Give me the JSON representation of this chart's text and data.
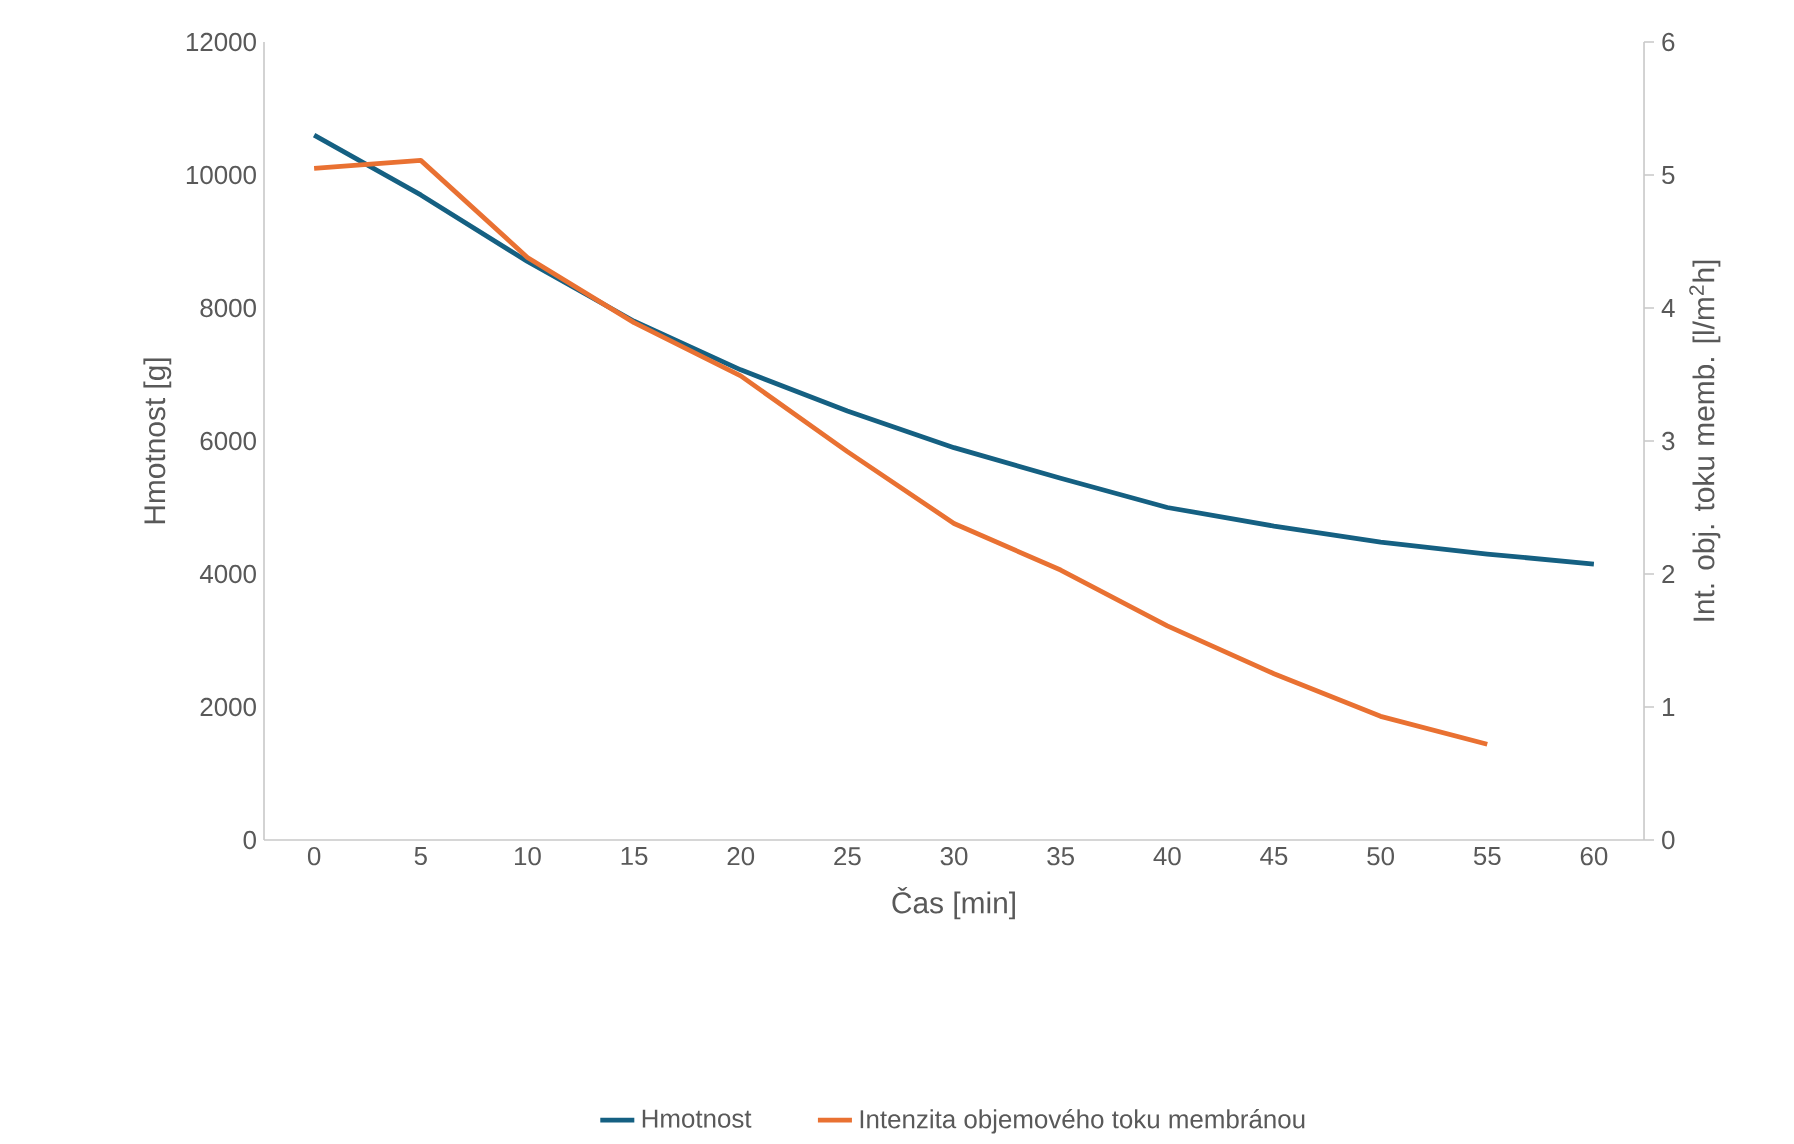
{
  "chart_data": {
    "type": "line",
    "xlabel": "Čas [min]",
    "ylabel": "Hmotnost [g]",
    "y2label": "Int. obj. toku memb. [l/m$^{2}$h]",
    "categories": [
      "0",
      "5",
      "10",
      "15",
      "20",
      "25",
      "30",
      "35",
      "40",
      "45",
      "50",
      "55",
      "60"
    ],
    "series": [
      {
        "name": "Hmotnost",
        "color": "#156082",
        "values": [
          10600,
          9700,
          8700,
          7800,
          7070,
          6450,
          5900,
          5440,
          5000,
          4720,
          4480,
          4300,
          4150
        ]
      },
      {
        "name": "Intenzita objemového toku membránou",
        "color": "#e97132",
        "axis": "y2",
        "values": [
          5.05,
          5.11,
          4.38,
          3.89,
          3.49,
          2.92,
          2.38,
          2.03,
          1.61,
          1.25,
          0.93,
          0.72,
          null
        ]
      }
    ],
    "ylim": [
      0,
      12000
    ],
    "yticks": [
      0,
      2000,
      4000,
      6000,
      8000,
      10000,
      12000
    ],
    "y2lim": [
      0,
      6
    ],
    "y2ticks": [
      0,
      1,
      2,
      3,
      4,
      5,
      6
    ],
    "grid": false,
    "legend": "bottom",
    "marker": "none",
    "line_style": "solid"
  }
}
